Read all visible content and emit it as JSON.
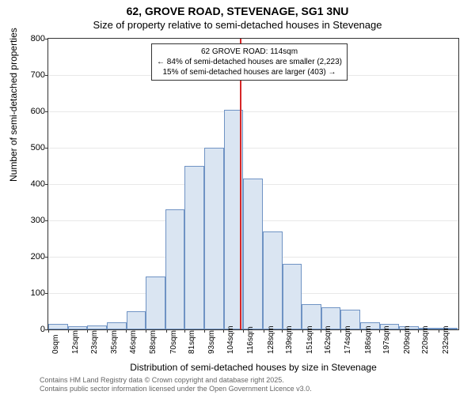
{
  "title_main": "62, GROVE ROAD, STEVENAGE, SG1 3NU",
  "title_sub": "Size of property relative to semi-detached houses in Stevenage",
  "ylabel": "Number of semi-detached properties",
  "xlabel": "Distribution of semi-detached houses by size in Stevenage",
  "footer_line1": "Contains HM Land Registry data © Crown copyright and database right 2025.",
  "footer_line2": "Contains public sector information licensed under the Open Government Licence v3.0.",
  "chart": {
    "type": "histogram",
    "bar_fill": "#dae5f2",
    "bar_border": "#6f93c4",
    "refline_color": "#d62728",
    "ref_x": 114,
    "ylim": [
      0,
      800
    ],
    "ytick_step": 100,
    "xmin": 0,
    "xmax": 244,
    "bin_width": 11.6,
    "xticks": [
      0,
      12,
      23,
      35,
      46,
      58,
      70,
      81,
      93,
      104,
      116,
      128,
      139,
      151,
      162,
      174,
      186,
      197,
      209,
      220,
      232
    ],
    "bars": [
      15,
      8,
      10,
      20,
      50,
      145,
      330,
      450,
      500,
      605,
      415,
      270,
      180,
      70,
      60,
      55,
      20,
      15,
      8,
      5,
      2
    ],
    "annot": {
      "line1": "62 GROVE ROAD: 114sqm",
      "line2": "← 84% of semi-detached houses are smaller (2,223)",
      "line3": "15% of semi-detached houses are larger (403) →"
    },
    "plot_bg": "#ffffff",
    "grid_color": "#e8e8e8"
  }
}
